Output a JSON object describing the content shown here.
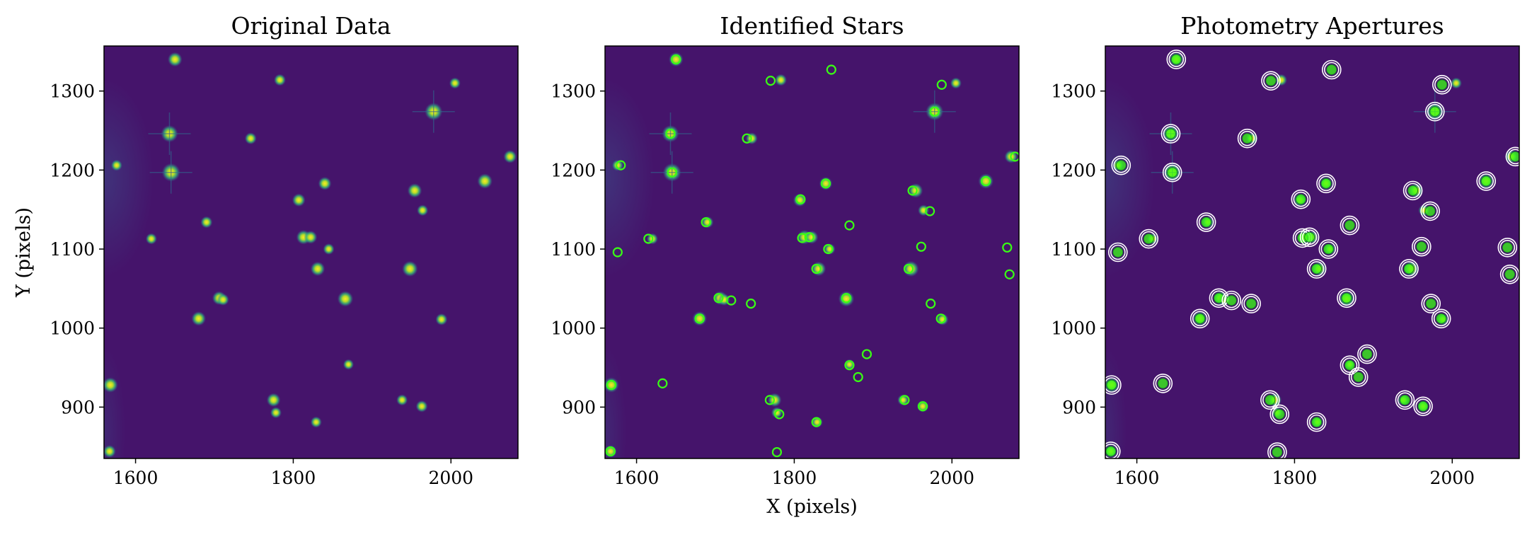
{
  "chart_data": [
    {
      "type": "scatter",
      "title": "Original Data",
      "xlabel": "",
      "ylabel": "Y (pixels)",
      "xlim": [
        1560,
        2085
      ],
      "ylim": [
        835,
        1357
      ],
      "xticks": [
        1600,
        1800,
        2000
      ],
      "yticks": [
        900,
        1000,
        1100,
        1200,
        1300
      ],
      "grid": false,
      "markers": "none",
      "image_colormap": "viridis",
      "x": [
        1645,
        1643,
        1978,
        1650,
        1813,
        1822,
        1866,
        1948,
        1831,
        1680,
        1706,
        1568,
        1775,
        2043,
        1954,
        1840,
        1746,
        1807,
        1576,
        1620,
        1963,
        1567,
        1690,
        1711,
        1783,
        1829,
        2005,
        2075,
        1988,
        1938,
        1964,
        1845,
        1870,
        1778
      ],
      "y": [
        1197,
        1246,
        1274,
        1340,
        1115,
        1115,
        1037,
        1075,
        1075,
        1012,
        1038,
        928,
        909,
        1186,
        1174,
        1183,
        1240,
        1162,
        1206,
        1113,
        901,
        844,
        1134,
        1036,
        1314,
        881,
        1310,
        1217,
        1011,
        909,
        1149,
        1100,
        954,
        893
      ],
      "brightness": [
        1.0,
        0.9,
        0.95,
        0.7,
        0.7,
        0.6,
        0.8,
        0.8,
        0.7,
        0.7,
        0.65,
        0.75,
        0.65,
        0.75,
        0.7,
        0.6,
        0.5,
        0.6,
        0.45,
        0.45,
        0.5,
        0.55,
        0.5,
        0.5,
        0.5,
        0.45,
        0.45,
        0.6,
        0.5,
        0.45,
        0.45,
        0.45,
        0.4,
        0.45
      ]
    },
    {
      "type": "scatter",
      "title": "Identified Stars",
      "xlabel": "X (pixels)",
      "ylabel": "",
      "xlim": [
        1560,
        2085
      ],
      "ylim": [
        835,
        1357
      ],
      "xticks": [
        1600,
        1800,
        2000
      ],
      "yticks": [
        900,
        1000,
        1100,
        1200,
        1300
      ],
      "grid": false,
      "markers": "green-circles",
      "marker_color": "#39ff14",
      "x": [
        1650,
        1770,
        1847,
        1987,
        1643,
        1978,
        1580,
        1740,
        2080,
        1645,
        2043,
        1840,
        1950,
        1808,
        1972,
        1688,
        1870,
        1615,
        1810,
        1819,
        1576,
        1961,
        1843,
        2070,
        1828,
        1945,
        2073,
        1866,
        1704,
        1720,
        1973,
        1745,
        1680,
        1986,
        1892,
        1870,
        1881,
        1568,
        1633,
        1769,
        1940,
        1781,
        1963,
        1828,
        1567,
        1778
      ],
      "y": [
        1340,
        1313,
        1327,
        1308,
        1246,
        1274,
        1206,
        1240,
        1217,
        1197,
        1186,
        1183,
        1174,
        1163,
        1148,
        1134,
        1130,
        1113,
        1114,
        1115,
        1096,
        1103,
        1100,
        1102,
        1075,
        1075,
        1068,
        1038,
        1038,
        1035,
        1031,
        1031,
        1012,
        1012,
        967,
        953,
        938,
        928,
        930,
        909,
        909,
        891,
        901,
        881,
        844,
        843
      ]
    },
    {
      "type": "scatter",
      "title": "Photometry Apertures",
      "xlabel": "",
      "ylabel": "",
      "xlim": [
        1560,
        2085
      ],
      "ylim": [
        835,
        1357
      ],
      "xticks": [
        1600,
        1800,
        2000
      ],
      "yticks": [
        900,
        1000,
        1100,
        1200,
        1300
      ],
      "grid": false,
      "markers": "green-dots-with-white-annuli",
      "marker_color": "#39ff14",
      "annulus_color": "#ffffff",
      "x": [
        1650,
        1770,
        1847,
        1987,
        1643,
        1978,
        1580,
        1740,
        2080,
        1645,
        2043,
        1840,
        1950,
        1808,
        1972,
        1688,
        1870,
        1615,
        1810,
        1819,
        1576,
        1961,
        1843,
        2070,
        1828,
        1945,
        2073,
        1866,
        1704,
        1720,
        1973,
        1745,
        1680,
        1986,
        1892,
        1870,
        1881,
        1568,
        1633,
        1769,
        1940,
        1781,
        1963,
        1828,
        1567,
        1778
      ],
      "y": [
        1340,
        1313,
        1327,
        1308,
        1246,
        1274,
        1206,
        1240,
        1217,
        1197,
        1186,
        1183,
        1174,
        1163,
        1148,
        1134,
        1130,
        1113,
        1114,
        1115,
        1096,
        1103,
        1100,
        1102,
        1075,
        1075,
        1068,
        1038,
        1038,
        1035,
        1031,
        1031,
        1012,
        1012,
        967,
        953,
        938,
        928,
        930,
        909,
        909,
        891,
        901,
        881,
        844,
        843
      ]
    }
  ],
  "colors": {
    "background": "#45146b",
    "text": "#000000",
    "marker": "#39ff14",
    "annulus": "#ffffff"
  }
}
